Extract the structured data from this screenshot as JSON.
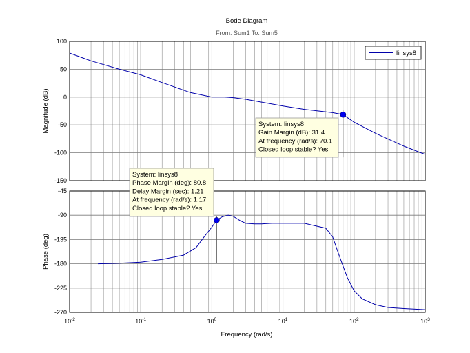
{
  "chart_data": {
    "type": "line",
    "title": "Bode Diagram",
    "subtitle": "From: Sum1  To: Sum5",
    "xlabel": "Frequency  (rad/s)",
    "x_scale": "log",
    "xlim": [
      0.01,
      1000
    ],
    "x_ticks": [
      {
        "base": "10",
        "exp": "-2"
      },
      {
        "base": "10",
        "exp": "-1"
      },
      {
        "base": "10",
        "exp": "0"
      },
      {
        "base": "10",
        "exp": "1"
      },
      {
        "base": "10",
        "exp": "2"
      },
      {
        "base": "10",
        "exp": "3"
      }
    ],
    "grid": true,
    "legend": {
      "position": "top-right",
      "entries": [
        "linsys8"
      ]
    },
    "magnitude": {
      "ylabel": "Magnitude (dB)",
      "ylim": [
        -150,
        100
      ],
      "y_ticks": [
        "100",
        "50",
        "0",
        "-50",
        "-100",
        "-150"
      ],
      "series": [
        {
          "name": "linsys8",
          "color": "#0000aa",
          "x": [
            0.01,
            0.02,
            0.05,
            0.1,
            0.2,
            0.5,
            1,
            1.5,
            2,
            3,
            5,
            10,
            20,
            50,
            70.1,
            100,
            200,
            500,
            1000
          ],
          "y": [
            79,
            65,
            50,
            40,
            26,
            8,
            0,
            0,
            -1,
            -4,
            -9,
            -16,
            -22,
            -28,
            -31.4,
            -45,
            -65,
            -88,
            -103
          ]
        }
      ]
    },
    "phase": {
      "ylabel": "Phase (deg)",
      "ylim": [
        -270,
        -45
      ],
      "y_ticks": [
        "-45",
        "-90",
        "-135",
        "-180",
        "-225",
        "-270"
      ],
      "series": [
        {
          "name": "linsys8",
          "color": "#0000aa",
          "x": [
            0.025,
            0.05,
            0.1,
            0.2,
            0.4,
            0.6,
            0.8,
            1,
            1.17,
            1.4,
            1.7,
            2,
            2.5,
            3,
            4,
            5,
            7,
            10,
            20,
            40,
            50,
            60,
            80,
            100,
            130,
            200,
            300,
            500,
            1000
          ],
          "y": [
            -180,
            -179,
            -177,
            -172,
            -164,
            -150,
            -128,
            -112,
            -99,
            -93,
            -90,
            -92,
            -100,
            -105,
            -106,
            -106,
            -105,
            -105,
            -105,
            -114,
            -130,
            -160,
            -205,
            -230,
            -245,
            -256,
            -261,
            -263,
            -265
          ]
        }
      ]
    },
    "datatips": [
      {
        "panel": "magnitude",
        "x": 70.1,
        "y": -31.4,
        "lines": [
          "System: linsys8",
          "Gain Margin (dB): 31.4",
          "At frequency (rad/s): 70.1",
          "Closed loop stable? Yes"
        ]
      },
      {
        "panel": "phase",
        "x": 1.17,
        "y": -99.2,
        "lines": [
          "System: linsys8",
          "Phase Margin (deg): 80.8",
          "Delay Margin (sec): 1.21",
          "At frequency (rad/s): 1.17",
          "Closed loop stable? Yes"
        ]
      }
    ]
  }
}
